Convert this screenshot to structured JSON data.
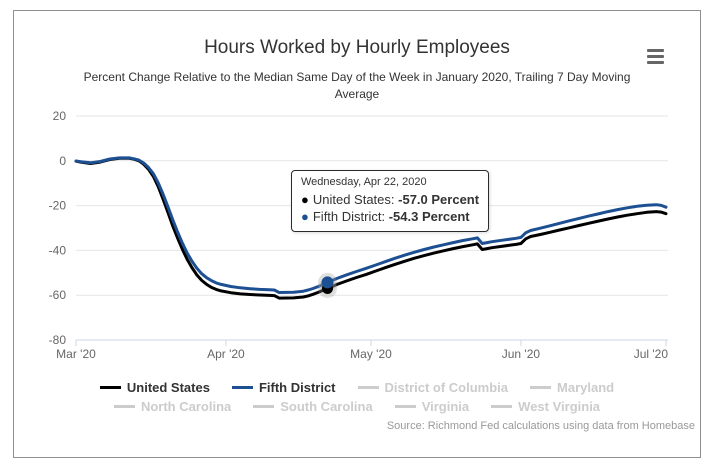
{
  "header": {
    "title": "Hours Worked by Hourly Employees",
    "subtitle": "Percent Change Relative to the Median Same Day of the Week in January 2020, Trailing 7 Day Moving Average"
  },
  "source": "Source: Richmond Fed calculations using data from Homebase",
  "colors": {
    "united_states": "#000000",
    "fifth_district": "#1d5093",
    "disabled": "#cccccc",
    "gridline": "#e6e6e6",
    "axis": "#ccd6eb",
    "axis_label": "#666666",
    "halo": "#999999"
  },
  "tooltip": {
    "header": "Wednesday, Apr 22, 2020",
    "rows": [
      {
        "name": "United States",
        "value": "-57.0 Percent",
        "color": "#000000"
      },
      {
        "name": "Fifth District",
        "value": "-54.3 Percent",
        "color": "#1d5093"
      }
    ]
  },
  "legend": {
    "rows": [
      [
        {
          "label": "United States",
          "color": "#000000",
          "enabled": true
        },
        {
          "label": "Fifth District",
          "color": "#1d5093",
          "enabled": true
        },
        {
          "label": "District of Columbia",
          "color": "#cccccc",
          "enabled": false
        },
        {
          "label": "Maryland",
          "color": "#cccccc",
          "enabled": false
        }
      ],
      [
        {
          "label": "North Carolina",
          "color": "#cccccc",
          "enabled": false
        },
        {
          "label": "South Carolina",
          "color": "#cccccc",
          "enabled": false
        },
        {
          "label": "Virginia",
          "color": "#cccccc",
          "enabled": false
        },
        {
          "label": "West Virginia",
          "color": "#cccccc",
          "enabled": false
        }
      ]
    ]
  },
  "chart_data": {
    "type": "line",
    "title": "Hours Worked by Hourly Employees",
    "subtitle": "Percent Change Relative to the Median Same Day of the Week in January 2020, Trailing 7 Day Moving Average",
    "ylim": [
      -80,
      20
    ],
    "y_ticks": [
      20,
      0,
      -20,
      -40,
      -60,
      -80
    ],
    "x_ticks": [
      {
        "day": 0,
        "label": "Mar '20"
      },
      {
        "day": 31,
        "label": "Apr '20"
      },
      {
        "day": 61,
        "label": "May '20"
      },
      {
        "day": 92,
        "label": "Jun '20"
      },
      {
        "day": 122,
        "label": "Jul '20"
      }
    ],
    "x_range_days": 122,
    "grid": true,
    "legend_position": "bottom",
    "hover_point": {
      "date": "Wednesday, Apr 22, 2020",
      "day": 52,
      "values": {
        "United States": -57.0,
        "Fifth District": -54.3
      }
    },
    "series": [
      {
        "name": "United States",
        "color": "#000000",
        "points": [
          [
            0,
            -0.2
          ],
          [
            1,
            -0.6
          ],
          [
            3,
            -1.2
          ],
          [
            5,
            -0.6
          ],
          [
            7,
            0.6
          ],
          [
            9,
            1.1
          ],
          [
            11,
            1.1
          ],
          [
            12,
            0.7
          ],
          [
            13,
            0
          ],
          [
            14,
            -1.5
          ],
          [
            15,
            -3.8
          ],
          [
            16,
            -7
          ],
          [
            17,
            -11.5
          ],
          [
            18,
            -17
          ],
          [
            19,
            -23
          ],
          [
            20,
            -29
          ],
          [
            21,
            -34.5
          ],
          [
            22,
            -39.5
          ],
          [
            23,
            -44
          ],
          [
            24,
            -47.8
          ],
          [
            25,
            -51
          ],
          [
            26,
            -53.4
          ],
          [
            27,
            -55.2
          ],
          [
            28,
            -56.5
          ],
          [
            29,
            -57.4
          ],
          [
            30,
            -58.1
          ],
          [
            32,
            -58.9
          ],
          [
            34,
            -59.4
          ],
          [
            36,
            -59.7
          ],
          [
            38,
            -59.9
          ],
          [
            40,
            -60.1
          ],
          [
            41,
            -60.2
          ],
          [
            42,
            -61.3
          ],
          [
            45,
            -61.2
          ],
          [
            47,
            -60.8
          ],
          [
            48,
            -60.3
          ],
          [
            49,
            -59.6
          ],
          [
            50,
            -58.8
          ],
          [
            51,
            -57.9
          ],
          [
            52,
            -57.0
          ],
          [
            53,
            -56.1
          ],
          [
            54,
            -55.2
          ],
          [
            56,
            -53.6
          ],
          [
            58,
            -52.1
          ],
          [
            60,
            -50.7
          ],
          [
            62,
            -49.2
          ],
          [
            64,
            -47.7
          ],
          [
            66,
            -46.2
          ],
          [
            68,
            -44.8
          ],
          [
            70,
            -43.5
          ],
          [
            72,
            -42.3
          ],
          [
            74,
            -41.2
          ],
          [
            76,
            -40.2
          ],
          [
            78,
            -39.2
          ],
          [
            80,
            -38.3
          ],
          [
            82,
            -37.5
          ],
          [
            83,
            -37.1
          ],
          [
            84,
            -39.6
          ],
          [
            85,
            -39.2
          ],
          [
            86,
            -38.8
          ],
          [
            88,
            -38.2
          ],
          [
            90,
            -37.6
          ],
          [
            91,
            -37.3
          ],
          [
            92,
            -36.9
          ],
          [
            93,
            -34.8
          ],
          [
            94,
            -33.8
          ],
          [
            96,
            -32.9
          ],
          [
            98,
            -31.9
          ],
          [
            100,
            -30.9
          ],
          [
            102,
            -29.9
          ],
          [
            104,
            -28.9
          ],
          [
            106,
            -27.9
          ],
          [
            108,
            -26.9
          ],
          [
            110,
            -26
          ],
          [
            112,
            -25.1
          ],
          [
            114,
            -24.3
          ],
          [
            116,
            -23.6
          ],
          [
            118,
            -23
          ],
          [
            120,
            -22.7
          ],
          [
            121,
            -22.9
          ],
          [
            122,
            -23.6
          ]
        ]
      },
      {
        "name": "Fifth District",
        "color": "#1d5093",
        "points": [
          [
            0,
            -0.1
          ],
          [
            1,
            -0.4
          ],
          [
            3,
            -0.9
          ],
          [
            5,
            -0.3
          ],
          [
            7,
            0.8
          ],
          [
            9,
            1.3
          ],
          [
            11,
            1.3
          ],
          [
            12,
            0.9
          ],
          [
            13,
            0.3
          ],
          [
            14,
            -1
          ],
          [
            15,
            -3
          ],
          [
            16,
            -5.8
          ],
          [
            17,
            -9.8
          ],
          [
            18,
            -14.8
          ],
          [
            19,
            -20.5
          ],
          [
            20,
            -26.3
          ],
          [
            21,
            -31.8
          ],
          [
            22,
            -36.8
          ],
          [
            23,
            -41.2
          ],
          [
            24,
            -44.9
          ],
          [
            25,
            -48
          ],
          [
            26,
            -50.4
          ],
          [
            27,
            -52.2
          ],
          [
            28,
            -53.5
          ],
          [
            29,
            -54.5
          ],
          [
            30,
            -55.2
          ],
          [
            32,
            -56.1
          ],
          [
            34,
            -56.7
          ],
          [
            36,
            -57.1
          ],
          [
            38,
            -57.4
          ],
          [
            40,
            -57.6
          ],
          [
            41,
            -57.7
          ],
          [
            42,
            -58.8
          ],
          [
            45,
            -58.7
          ],
          [
            47,
            -58.2
          ],
          [
            48,
            -57.7
          ],
          [
            49,
            -57
          ],
          [
            50,
            -56.2
          ],
          [
            51,
            -55.3
          ],
          [
            52,
            -54.3
          ],
          [
            53,
            -53.4
          ],
          [
            54,
            -52.5
          ],
          [
            56,
            -50.9
          ],
          [
            58,
            -49.4
          ],
          [
            60,
            -48
          ],
          [
            62,
            -46.5
          ],
          [
            64,
            -45
          ],
          [
            66,
            -43.5
          ],
          [
            68,
            -42.1
          ],
          [
            70,
            -40.8
          ],
          [
            72,
            -39.6
          ],
          [
            74,
            -38.5
          ],
          [
            76,
            -37.5
          ],
          [
            78,
            -36.5
          ],
          [
            80,
            -35.6
          ],
          [
            82,
            -34.8
          ],
          [
            83,
            -34.4
          ],
          [
            84,
            -36.9
          ],
          [
            85,
            -36.5
          ],
          [
            86,
            -36.1
          ],
          [
            88,
            -35.5
          ],
          [
            90,
            -34.9
          ],
          [
            91,
            -34.6
          ],
          [
            92,
            -34.2
          ],
          [
            93,
            -32.1
          ],
          [
            94,
            -31.1
          ],
          [
            96,
            -30.1
          ],
          [
            98,
            -29
          ],
          [
            100,
            -27.9
          ],
          [
            102,
            -26.8
          ],
          [
            104,
            -25.7
          ],
          [
            106,
            -24.7
          ],
          [
            108,
            -23.7
          ],
          [
            110,
            -22.7
          ],
          [
            112,
            -21.8
          ],
          [
            114,
            -21
          ],
          [
            116,
            -20.3
          ],
          [
            118,
            -19.8
          ],
          [
            120,
            -19.6
          ],
          [
            121,
            -19.9
          ],
          [
            122,
            -20.7
          ]
        ]
      }
    ]
  }
}
